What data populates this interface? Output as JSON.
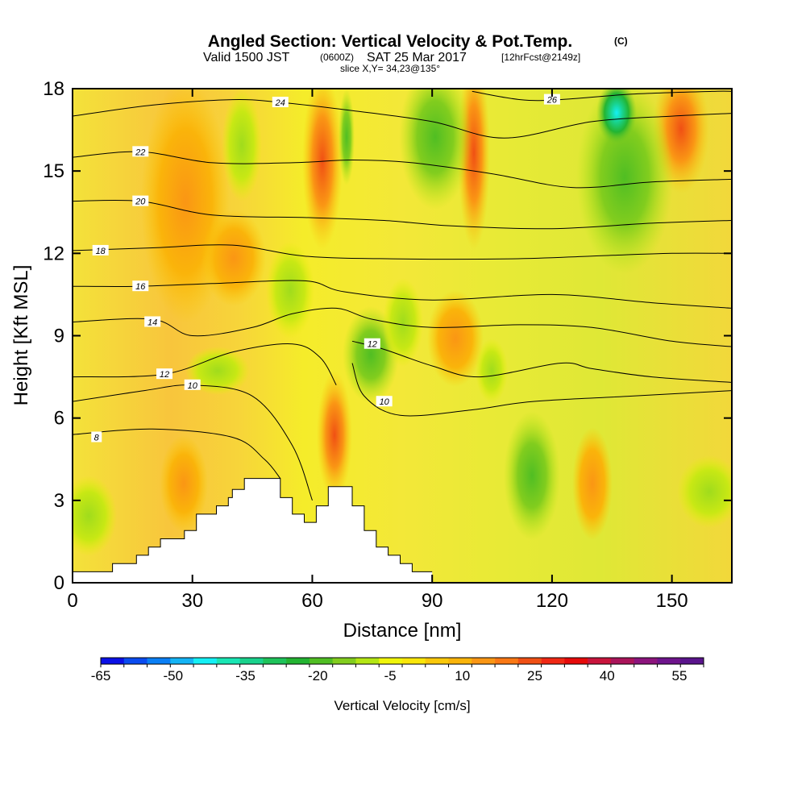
{
  "title": {
    "main": "Angled Section: Vertical Velocity & Pot.Temp.",
    "units_tag": "(C)",
    "valid_prefix": "Valid 1500 JST",
    "valid_utc": "(0600Z)",
    "valid_date": "SAT 25 Mar 2017",
    "forecast": "[12hrFcst@2149z]",
    "slice": "slice X,Y= 34,23@135°"
  },
  "chart_data": {
    "type": "heatmap",
    "xlabel": "Distance [nm]",
    "ylabel": "Height [Kft MSL]",
    "xlim": [
      0,
      165
    ],
    "ylim": [
      0,
      18
    ],
    "x_ticks": [
      0,
      30,
      60,
      90,
      120,
      150
    ],
    "y_ticks": [
      0,
      3,
      6,
      9,
      12,
      15,
      18
    ],
    "colorbar": {
      "label": "Vertical Velocity [cm/s]",
      "tick_labels": [
        "-65",
        "-50",
        "-35",
        "-20",
        "-5",
        "10",
        "25",
        "40",
        "55"
      ],
      "colors": [
        "#0a10e6",
        "#0a4bf0",
        "#0a7ff5",
        "#14b4f5",
        "#14f0f5",
        "#19e6b4",
        "#19d28c",
        "#1ec35a",
        "#23b432",
        "#50be23",
        "#82cd1e",
        "#b4e614",
        "#f0f50a",
        "#fae60a",
        "#fac80a",
        "#fab40a",
        "#fa9614",
        "#fa7814",
        "#f05014",
        "#f02814",
        "#e60a0a",
        "#c8143c",
        "#aa145a",
        "#8c147d",
        "#6e148c",
        "#5a148c"
      ]
    },
    "terrain_height_kft": [
      [
        0,
        0.4
      ],
      [
        10,
        0.4
      ],
      [
        10,
        0.7
      ],
      [
        16,
        0.7
      ],
      [
        16,
        1.0
      ],
      [
        19,
        1.0
      ],
      [
        19,
        1.3
      ],
      [
        22,
        1.3
      ],
      [
        22,
        1.6
      ],
      [
        28,
        1.6
      ],
      [
        28,
        1.9
      ],
      [
        31,
        1.9
      ],
      [
        31,
        2.5
      ],
      [
        36,
        2.5
      ],
      [
        36,
        2.8
      ],
      [
        39,
        2.8
      ],
      [
        39,
        3.1
      ],
      [
        40,
        3.1
      ],
      [
        40,
        3.4
      ],
      [
        43,
        3.4
      ],
      [
        43,
        3.8
      ],
      [
        52,
        3.8
      ],
      [
        52,
        3.1
      ],
      [
        55,
        3.1
      ],
      [
        55,
        2.5
      ],
      [
        58,
        2.5
      ],
      [
        58,
        2.2
      ],
      [
        61,
        2.2
      ],
      [
        61,
        2.8
      ],
      [
        64,
        2.8
      ],
      [
        64,
        3.5
      ],
      [
        70,
        3.5
      ],
      [
        70,
        2.8
      ],
      [
        73,
        2.8
      ],
      [
        73,
        1.9
      ],
      [
        76,
        1.9
      ],
      [
        76,
        1.3
      ],
      [
        79,
        1.3
      ],
      [
        79,
        1.0
      ],
      [
        82,
        1.0
      ],
      [
        82,
        0.7
      ],
      [
        85,
        0.7
      ],
      [
        85,
        0.4
      ],
      [
        90,
        0.4
      ]
    ],
    "theta_contours": [
      {
        "value": 8,
        "label_at": [
          6,
          5.3
        ],
        "points": [
          [
            0,
            5.4
          ],
          [
            20,
            5.6
          ],
          [
            40,
            5.3
          ],
          [
            48,
            4.5
          ],
          [
            52,
            3.8
          ]
        ]
      },
      {
        "value": 10,
        "label_at": [
          30,
          7.2
        ],
        "points": [
          [
            0,
            6.6
          ],
          [
            18,
            7.0
          ],
          [
            30,
            7.2
          ],
          [
            45,
            6.8
          ],
          [
            55,
            5.0
          ],
          [
            60,
            3.0
          ]
        ]
      },
      {
        "value": 10,
        "label_at": [
          78,
          6.6
        ],
        "points": [
          [
            70,
            8.0
          ],
          [
            73,
            6.8
          ],
          [
            82,
            6.1
          ],
          [
            100,
            6.3
          ],
          [
            115,
            6.6
          ],
          [
            140,
            6.8
          ],
          [
            165,
            7.0
          ]
        ]
      },
      {
        "value": 12,
        "label_at": [
          23,
          7.6
        ],
        "points": [
          [
            0,
            7.5
          ],
          [
            23,
            7.6
          ],
          [
            40,
            8.4
          ],
          [
            55,
            8.7
          ],
          [
            62,
            8.2
          ],
          [
            66,
            7.2
          ]
        ]
      },
      {
        "value": 12,
        "label_at": [
          75,
          8.7
        ],
        "points": [
          [
            70,
            8.8
          ],
          [
            78,
            8.5
          ],
          [
            90,
            7.9
          ],
          [
            102,
            7.5
          ],
          [
            122,
            8.0
          ],
          [
            130,
            7.8
          ],
          [
            145,
            7.5
          ],
          [
            165,
            7.3
          ]
        ]
      },
      {
        "value": 14,
        "label_at": [
          20,
          9.5
        ],
        "points": [
          [
            0,
            9.5
          ],
          [
            20,
            9.6
          ],
          [
            30,
            9.0
          ],
          [
            45,
            9.3
          ],
          [
            55,
            9.8
          ],
          [
            66,
            10.0
          ],
          [
            75,
            9.6
          ],
          [
            90,
            9.3
          ],
          [
            112,
            9.4
          ],
          [
            130,
            9.3
          ],
          [
            150,
            8.8
          ],
          [
            165,
            8.6
          ]
        ]
      },
      {
        "value": 16,
        "label_at": [
          17,
          10.8
        ],
        "points": [
          [
            0,
            10.8
          ],
          [
            17,
            10.8
          ],
          [
            35,
            10.9
          ],
          [
            58,
            11.0
          ],
          [
            68,
            10.6
          ],
          [
            90,
            10.3
          ],
          [
            120,
            10.5
          ],
          [
            145,
            10.2
          ],
          [
            165,
            10.0
          ]
        ]
      },
      {
        "value": 18,
        "label_at": [
          7,
          12.1
        ],
        "points": [
          [
            0,
            12.1
          ],
          [
            20,
            12.2
          ],
          [
            40,
            12.3
          ],
          [
            58,
            11.9
          ],
          [
            80,
            11.8
          ],
          [
            110,
            11.8
          ],
          [
            130,
            11.9
          ],
          [
            150,
            12.0
          ],
          [
            165,
            12.0
          ]
        ]
      },
      {
        "value": 20,
        "label_at": [
          17,
          13.9
        ],
        "points": [
          [
            0,
            13.9
          ],
          [
            17,
            13.9
          ],
          [
            35,
            13.4
          ],
          [
            60,
            13.3
          ],
          [
            78,
            13.2
          ],
          [
            95,
            13.0
          ],
          [
            120,
            12.9
          ],
          [
            145,
            13.1
          ],
          [
            165,
            13.2
          ]
        ]
      },
      {
        "value": 22,
        "label_at": [
          17,
          15.7
        ],
        "points": [
          [
            0,
            15.5
          ],
          [
            17,
            15.7
          ],
          [
            35,
            15.3
          ],
          [
            55,
            15.3
          ],
          [
            70,
            15.4
          ],
          [
            85,
            15.3
          ],
          [
            105,
            14.9
          ],
          [
            125,
            14.4
          ],
          [
            145,
            14.6
          ],
          [
            165,
            14.7
          ]
        ]
      },
      {
        "value": 24,
        "label_at": [
          52,
          17.5
        ],
        "points": [
          [
            0,
            17.0
          ],
          [
            20,
            17.4
          ],
          [
            40,
            17.6
          ],
          [
            52,
            17.5
          ],
          [
            70,
            17.2
          ],
          [
            90,
            16.8
          ],
          [
            108,
            16.2
          ],
          [
            130,
            16.8
          ],
          [
            150,
            17.0
          ],
          [
            165,
            17.1
          ]
        ]
      },
      {
        "value": 26,
        "label_at": [
          120,
          17.6
        ],
        "points": [
          [
            100,
            17.9
          ],
          [
            112,
            17.6
          ],
          [
            122,
            17.6
          ],
          [
            140,
            17.8
          ],
          [
            160,
            17.9
          ],
          [
            165,
            17.9
          ]
        ]
      }
    ]
  }
}
